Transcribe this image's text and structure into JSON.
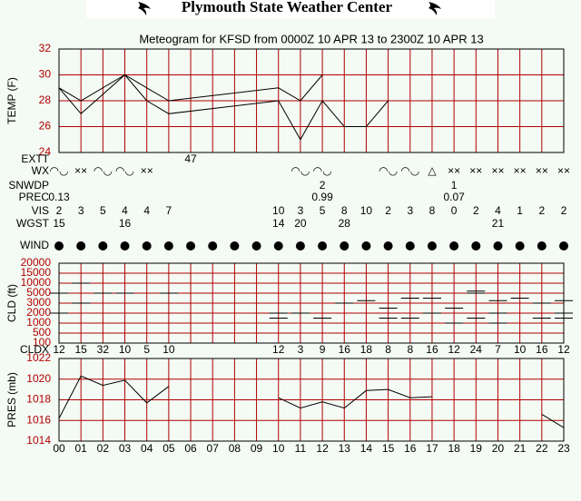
{
  "header": {
    "title": "Plymouth State Weather Center"
  },
  "chart_data": {
    "type": "meteogram",
    "title": "Meteogram for KFSD from 0000Z 10 APR 13 to 2300Z 10 APR 13",
    "categories": [
      "00",
      "01",
      "02",
      "03",
      "04",
      "05",
      "06",
      "07",
      "08",
      "09",
      "10",
      "11",
      "12",
      "13",
      "14",
      "15",
      "16",
      "17",
      "18",
      "19",
      "20",
      "21",
      "22",
      "23"
    ],
    "panels": [
      {
        "type": "line",
        "ylabel": "TEMP (F)",
        "ylim": [
          24,
          32
        ],
        "yticks": [
          24,
          26,
          28,
          30,
          32
        ],
        "grid": true,
        "series": [
          {
            "color": "#000000",
            "x": [
              0,
              1,
              3,
              4,
              5,
              10,
              11,
              12
            ],
            "values": [
              29,
              28,
              30,
              29,
              28,
              29,
              28,
              30
            ]
          },
          {
            "color": "#000000",
            "x": [
              0,
              1,
              3,
              4,
              5,
              10,
              11,
              12,
              13,
              14,
              15
            ],
            "values": [
              29,
              27,
              30,
              28,
              27,
              28,
              25,
              28,
              26,
              26,
              28
            ]
          }
        ]
      },
      {
        "type": "rows",
        "rows": [
          {
            "label": "EXTT",
            "values": [
              null,
              null,
              null,
              null,
              null,
              null,
              47,
              null,
              null,
              null,
              null,
              null,
              null,
              null,
              null,
              null,
              null,
              null,
              null,
              null,
              null,
              null,
              null,
              null
            ]
          },
          {
            "label": "WX",
            "values": [
              "◠◡",
              "××",
              "◠◡",
              "◠◡",
              "××",
              null,
              null,
              null,
              null,
              null,
              null,
              "◠◡",
              "◠◡",
              null,
              null,
              "◠◡",
              "◠◡",
              "△",
              "××",
              "××",
              "××",
              "××",
              "××",
              "××"
            ]
          },
          {
            "label": "SNWDP",
            "values": [
              null,
              null,
              null,
              null,
              null,
              null,
              null,
              null,
              null,
              null,
              null,
              null,
              2,
              null,
              null,
              null,
              null,
              null,
              1,
              null,
              null,
              null,
              null,
              null
            ]
          },
          {
            "label": "PREC",
            "values": [
              0.13,
              null,
              null,
              null,
              null,
              null,
              null,
              null,
              null,
              null,
              null,
              null,
              0.99,
              null,
              null,
              null,
              null,
              null,
              0.07,
              null,
              null,
              null,
              null,
              null
            ]
          },
          {
            "label": "VIS",
            "values": [
              2,
              3,
              5,
              4,
              4,
              7,
              null,
              null,
              null,
              null,
              10,
              3,
              5,
              8,
              10,
              2,
              3,
              8,
              0,
              2,
              4,
              1,
              2,
              2
            ]
          },
          {
            "label": "WGST",
            "values": [
              15,
              null,
              null,
              16,
              null,
              null,
              null,
              null,
              null,
              null,
              14,
              20,
              null,
              28,
              null,
              null,
              null,
              null,
              null,
              null,
              21,
              null,
              null,
              null
            ]
          },
          {
            "label": "WIND"
          }
        ]
      },
      {
        "type": "dash",
        "ylabel": "CLD (ft)",
        "yticks": [
          100,
          500,
          1000,
          2000,
          3000,
          5000,
          10000,
          15000,
          20000
        ],
        "grid": true,
        "series": [
          {
            "color": "#000000",
            "x": [
              0,
              0,
              1,
              1,
              2,
              3,
              5,
              10,
              10,
              11,
              12,
              13,
              14,
              15,
              15,
              16,
              16,
              17,
              17,
              18,
              18,
              19,
              19,
              19,
              20,
              20,
              20,
              21,
              22,
              22,
              23,
              23,
              23
            ],
            "values": [
              5000,
              2000,
              10000,
              3000,
              5000,
              5000,
              5000,
              2000,
              1500,
              2000,
              1500,
              3000,
              3500,
              2500,
              1500,
              4000,
              1500,
              4000,
              2000,
              2500,
              1000,
              6000,
              5000,
              1500,
              3500,
              2000,
              1000,
              4000,
              3000,
              1500,
              3500,
              2000,
              1500
            ]
          }
        ]
      },
      {
        "type": "rows",
        "rows": [
          {
            "label": "CLDX",
            "values": [
              12,
              15,
              32,
              10,
              5,
              10,
              null,
              null,
              null,
              null,
              12,
              3,
              9,
              16,
              18,
              8,
              8,
              16,
              12,
              24,
              7,
              10,
              16,
              12
            ]
          }
        ]
      },
      {
        "type": "line",
        "ylabel": "PRES (mb)",
        "ylim": [
          1014,
          1022
        ],
        "yticks": [
          1014,
          1016,
          1018,
          1020,
          1022
        ],
        "grid": true,
        "series": [
          {
            "color": "#000000",
            "values": [
              1016.2,
              1020.3,
              1019.4,
              1019.9,
              1017.7,
              1019.3,
              null,
              null,
              null,
              null,
              1018.2,
              1017.2,
              1017.8,
              1017.2,
              1018.9,
              1019.0,
              1018.2,
              1018.3,
              null,
              null,
              null,
              null,
              1016.6,
              1015.3
            ]
          }
        ]
      }
    ]
  }
}
